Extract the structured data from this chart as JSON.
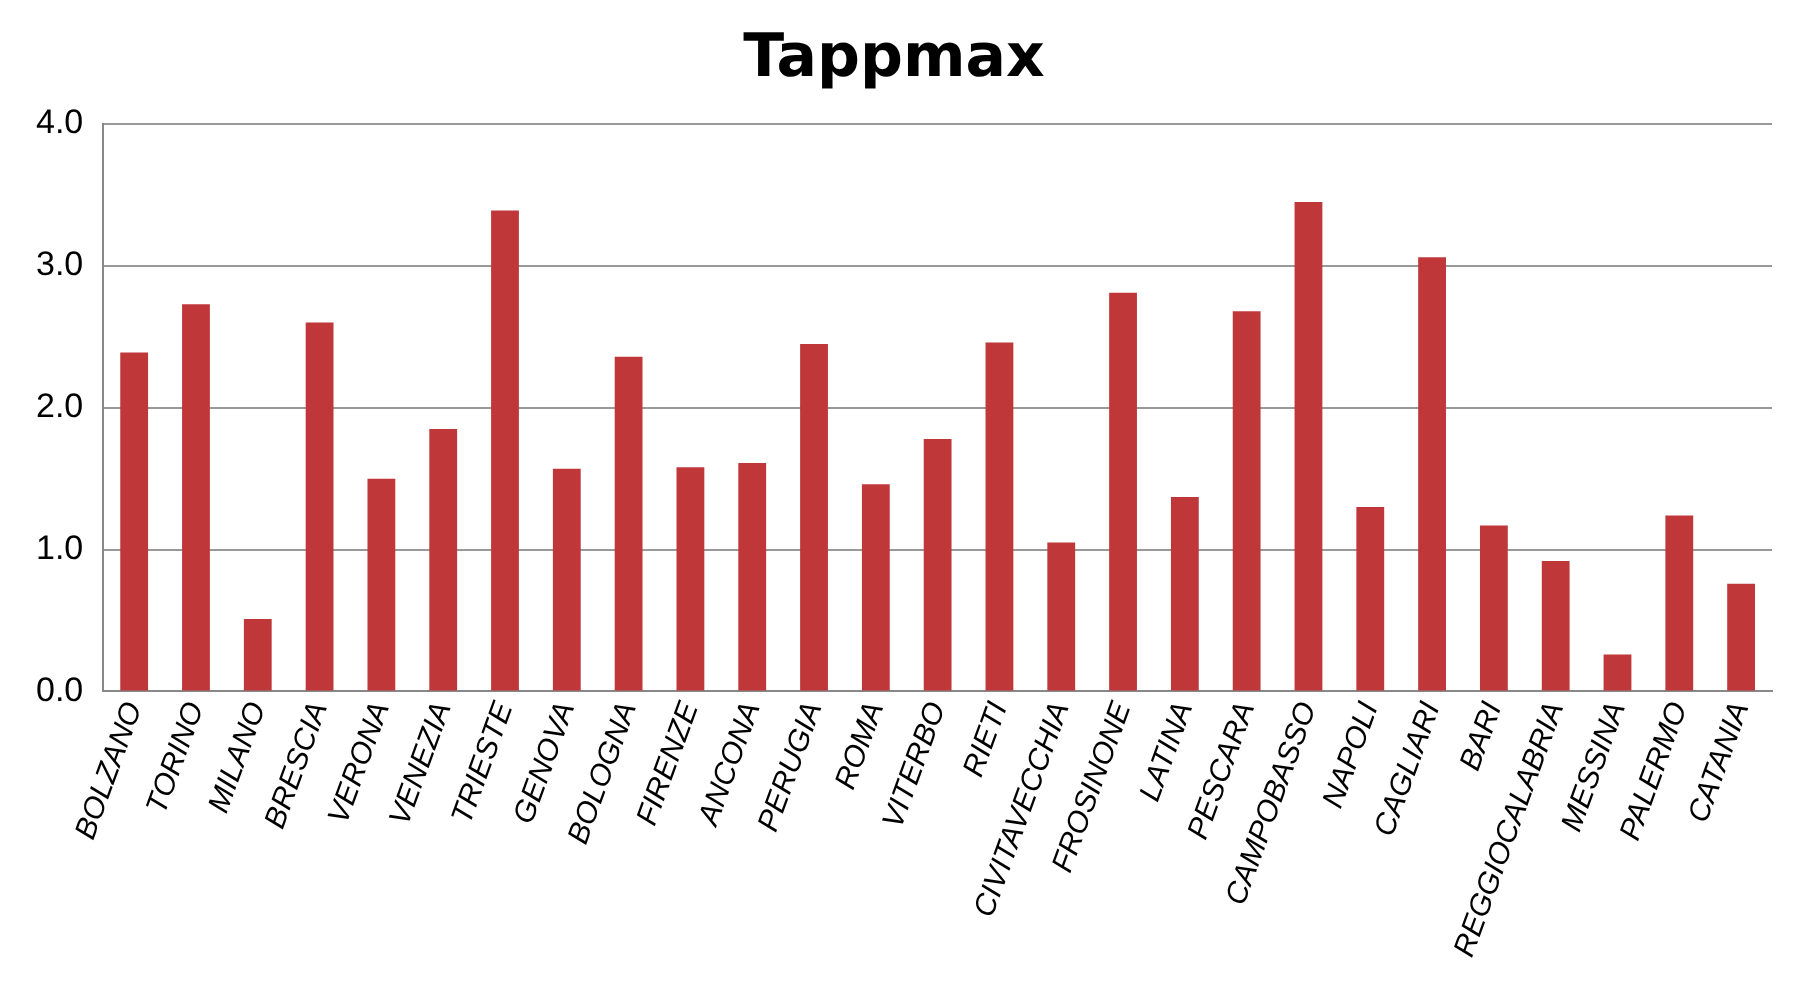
{
  "chart_data": {
    "type": "bar",
    "title": "Tappmax",
    "categories": [
      "BOLZANO",
      "TORINO",
      "MILANO",
      "BRESCIA",
      "VERONA",
      "VENEZIA",
      "TRIESTE",
      "GENOVA",
      "BOLOGNA",
      "FIRENZE",
      "ANCONA",
      "PERUGIA",
      "ROMA",
      "VITERBO",
      "RIETI",
      "CIVITAVECCHIA",
      "FROSINONE",
      "LATINA",
      "PESCARA",
      "CAMPOBASSO",
      "NAPOLI",
      "CAGLIARI",
      "BARI",
      "REGGIOCALABRIA",
      "MESSINA",
      "PALERMO",
      "CATANIA"
    ],
    "values": [
      2.39,
      2.73,
      0.51,
      2.6,
      1.5,
      1.85,
      3.39,
      1.57,
      2.36,
      1.58,
      1.61,
      2.45,
      1.46,
      1.78,
      2.46,
      1.05,
      2.81,
      1.37,
      2.68,
      3.45,
      1.3,
      3.06,
      1.17,
      0.92,
      0.26,
      1.24,
      0.76
    ],
    "color": "#c0373a",
    "ylim": [
      0,
      4
    ],
    "yticks": [
      {
        "value": 0,
        "label": "0.0"
      },
      {
        "value": 1,
        "label": "1.0"
      },
      {
        "value": 2,
        "label": "2.0"
      },
      {
        "value": 3,
        "label": "3.0"
      },
      {
        "value": 4,
        "label": "4.0"
      }
    ],
    "grid": "y",
    "legend": false
  }
}
